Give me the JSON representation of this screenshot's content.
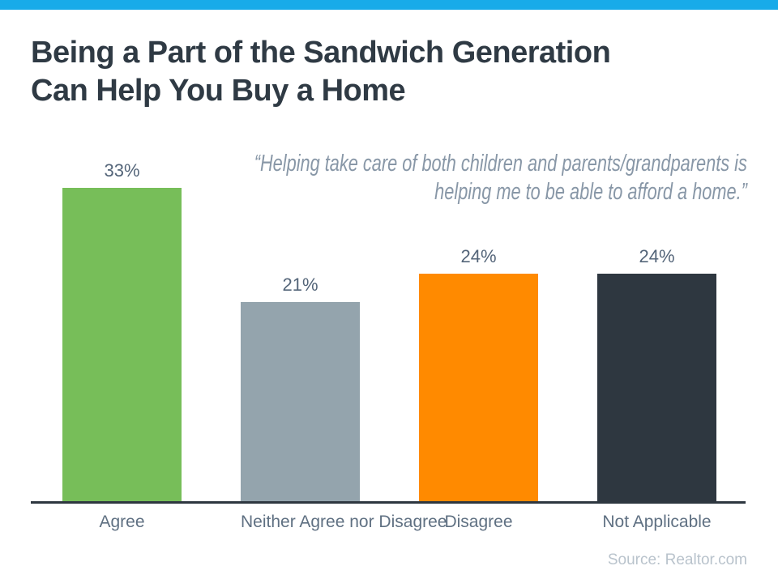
{
  "top_bar": {
    "color": "#18ABE9"
  },
  "title": {
    "lines": [
      "Being a Part of the Sandwich Generation",
      "Can Help You Buy a Home"
    ]
  },
  "quote": {
    "lines": [
      "“Helping take care of both children and parents/grandparents is",
      "helping me to be able to afford a home.”"
    ]
  },
  "chart_data": {
    "type": "bar",
    "title": "Being a Part of the Sandwich Generation Can Help You Buy a Home",
    "categories": [
      "Agree",
      "Neither Agree nor Disagree",
      "Disagree",
      "Not Applicable"
    ],
    "values": [
      33,
      21,
      24,
      24
    ],
    "value_labels": [
      "33%",
      "21%",
      "24%",
      "24%"
    ],
    "colors": [
      "#77BE59",
      "#94A4AD",
      "#FF8A00",
      "#2E3740"
    ],
    "unit": "percent",
    "ylim": [
      0,
      35
    ],
    "grid": false,
    "legend": "none",
    "axis_line_color": "#2E3740",
    "annotation": "“Helping take care of both children and parents/grandparents is helping me to be able to afford a home.”"
  },
  "source": "Source: Realtor.com"
}
